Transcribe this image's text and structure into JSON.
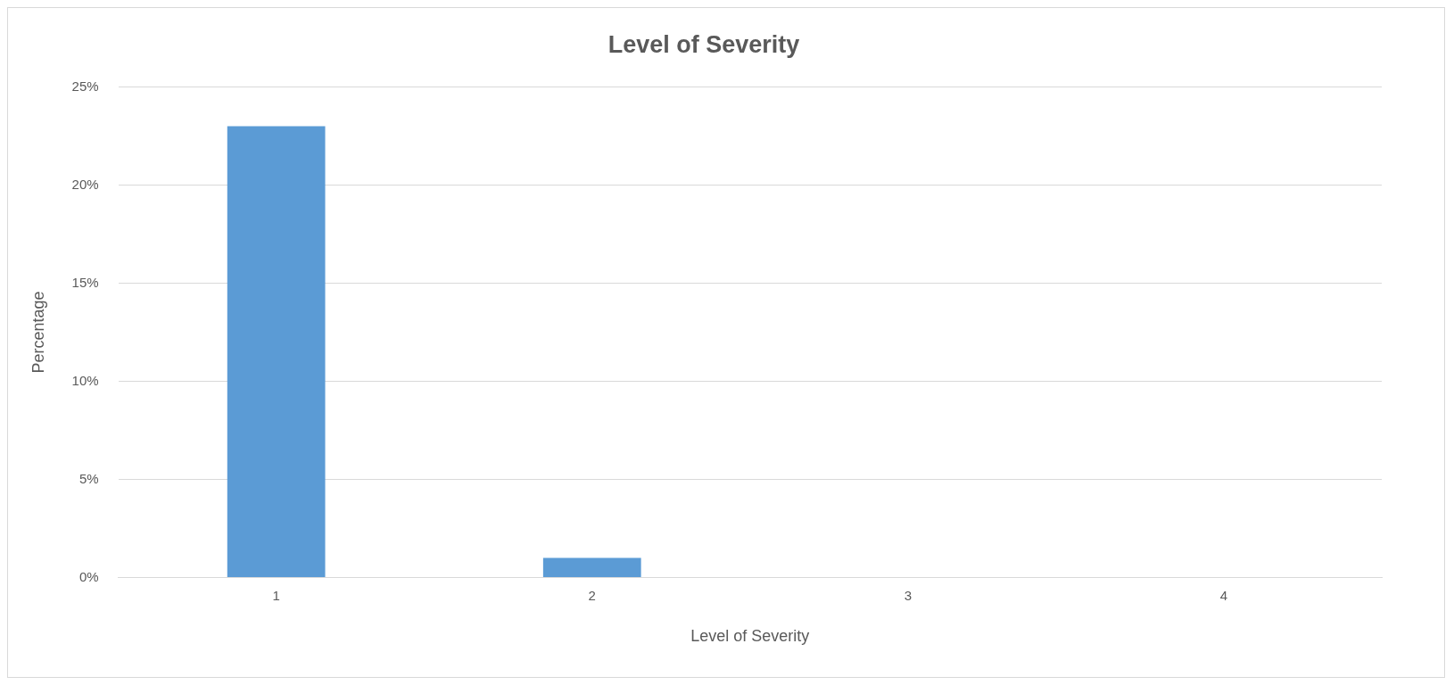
{
  "chart_data": {
    "type": "bar",
    "title": "Level of Severity",
    "xlabel": "Level of Severity",
    "ylabel": "Percentage",
    "categories": [
      "1",
      "2",
      "3",
      "4"
    ],
    "series": [
      {
        "color": "#5b9bd5",
        "values": [
          23,
          1,
          0,
          0
        ]
      }
    ],
    "ylim": [
      0,
      25
    ],
    "yticks": [
      {
        "value": 0,
        "label": "0%"
      },
      {
        "value": 5,
        "label": "5%"
      },
      {
        "value": 10,
        "label": "10%"
      },
      {
        "value": 15,
        "label": "15%"
      },
      {
        "value": 20,
        "label": "20%"
      },
      {
        "value": 25,
        "label": "25%"
      }
    ],
    "grid": "y",
    "legend": false
  }
}
